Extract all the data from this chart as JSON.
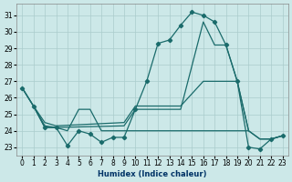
{
  "xlabel": "Humidex (Indice chaleur)",
  "background_color": "#cce8e8",
  "grid_color": "#aacccc",
  "line_color": "#1a6b6b",
  "xlim": [
    -0.5,
    23.5
  ],
  "ylim": [
    22.5,
    31.7
  ],
  "xticks": [
    0,
    1,
    2,
    3,
    4,
    5,
    6,
    7,
    8,
    9,
    10,
    11,
    12,
    13,
    14,
    15,
    16,
    17,
    18,
    19,
    20,
    21,
    22,
    23
  ],
  "yticks": [
    23,
    24,
    25,
    26,
    27,
    28,
    29,
    30,
    31
  ],
  "line1_x": [
    0,
    1,
    2,
    3,
    4,
    5,
    6,
    7,
    8,
    9,
    10,
    11,
    12,
    13,
    14,
    15,
    16,
    17,
    18,
    19,
    20,
    21,
    22,
    23
  ],
  "line1_y": [
    26.6,
    25.5,
    24.2,
    24.2,
    23.1,
    24.0,
    23.8,
    23.3,
    23.6,
    23.6,
    25.3,
    27.0,
    29.3,
    29.5,
    30.4,
    31.2,
    31.0,
    30.6,
    29.2,
    27.0,
    23.0,
    22.9,
    23.5,
    23.7
  ],
  "line2_x": [
    0,
    1,
    2,
    3,
    9,
    10,
    14,
    16,
    17,
    18,
    19,
    20,
    21,
    22,
    23
  ],
  "line2_y": [
    26.6,
    25.5,
    24.3,
    24.2,
    24.3,
    25.3,
    25.3,
    30.6,
    29.2,
    29.2,
    27.0,
    24.0,
    23.5,
    23.5,
    23.7
  ],
  "line3_x": [
    0,
    1,
    2,
    3,
    9,
    10,
    14,
    16,
    19,
    20,
    21,
    22,
    23
  ],
  "line3_y": [
    26.6,
    25.5,
    24.5,
    24.3,
    24.5,
    25.5,
    25.5,
    27.0,
    27.0,
    24.0,
    23.5,
    23.5,
    23.7
  ],
  "line4_x": [
    1,
    2,
    3,
    4,
    5,
    6,
    7,
    8,
    9,
    10,
    11,
    12,
    13,
    14,
    15,
    16,
    17,
    18,
    19,
    20
  ],
  "line4_y": [
    25.5,
    24.2,
    24.2,
    24.0,
    25.3,
    25.3,
    24.0,
    24.0,
    24.0,
    24.0,
    24.0,
    24.0,
    24.0,
    24.0,
    24.0,
    24.0,
    24.0,
    24.0,
    24.0,
    24.0
  ]
}
